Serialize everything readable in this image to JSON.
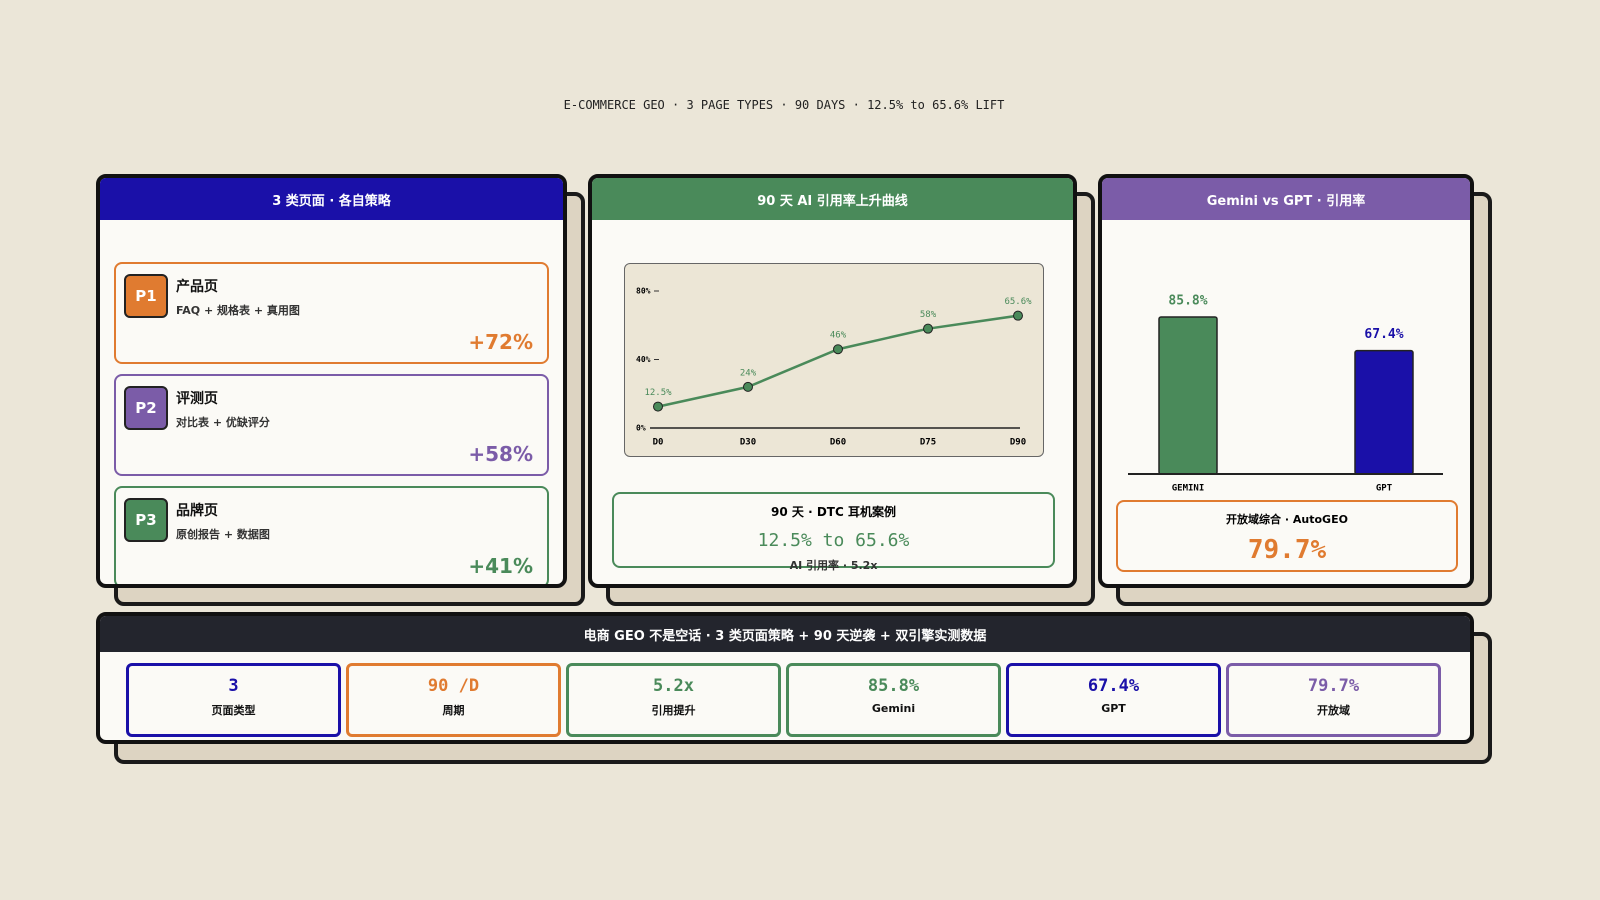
{
  "header": {
    "title": "E-COMMERCE GEO · 3 PAGE TYPES · 90 DAYS · 12.5% to 65.6% LIFT"
  },
  "panels": {
    "strategy": {
      "title": "3 类页面 · 各自策略",
      "items": [
        {
          "badge": "P1",
          "name": "产品页",
          "desc": "FAQ + 规格表 + 真用图",
          "lift": "+72%"
        },
        {
          "badge": "P2",
          "name": "评测页",
          "desc": "对比表 + 优缺评分",
          "lift": "+58%"
        },
        {
          "badge": "P3",
          "name": "品牌页",
          "desc": "原创报告 + 数据图",
          "lift": "+41%"
        }
      ]
    },
    "curve": {
      "title": "90 天 AI 引用率上升曲线",
      "case": {
        "title": "90 天 · DTC 耳机案例",
        "value": "12.5% to 65.6%",
        "note": "AI 引用率 · 5.2x"
      }
    },
    "compare": {
      "title": "Gemini vs GPT · 引用率",
      "summary": {
        "label": "开放域综合 · AutoGEO",
        "value": "79.7%"
      }
    }
  },
  "chart_data": [
    {
      "type": "line",
      "categories": [
        "D0",
        "D30",
        "D60",
        "D75",
        "D90"
      ],
      "values": [
        12.5,
        24,
        46,
        58,
        65.6
      ],
      "value_labels": [
        "12.5%",
        "24%",
        "46%",
        "58%",
        "65.6%"
      ],
      "color": "#4a8a5a",
      "ylim": [
        0,
        80
      ],
      "yticks": [
        {
          "value": 0,
          "label": "0%"
        },
        {
          "value": 40,
          "label": "40%"
        },
        {
          "value": 80,
          "label": "80%"
        }
      ]
    },
    {
      "type": "bar",
      "categories": [
        "GEMINI",
        "GPT"
      ],
      "values": [
        85.8,
        67.4
      ],
      "value_labels": [
        "85.8%",
        "67.4%"
      ],
      "colors": [
        "#4a8a5a",
        "#1a10a8"
      ],
      "ylim": [
        0,
        100
      ]
    }
  ],
  "footer": {
    "title": "电商 GEO 不是空话 · 3 类页面策略 + 90 天逆袭 + 双引擎实测数据",
    "stats": [
      {
        "value": "3",
        "label": "页面类型"
      },
      {
        "value": "90 /D",
        "label": "周期"
      },
      {
        "value": "5.2x",
        "label": "引用提升"
      },
      {
        "value": "85.8%",
        "label": "Gemini"
      },
      {
        "value": "67.4%",
        "label": "GPT"
      },
      {
        "value": "79.7%",
        "label": "开放域"
      }
    ]
  }
}
